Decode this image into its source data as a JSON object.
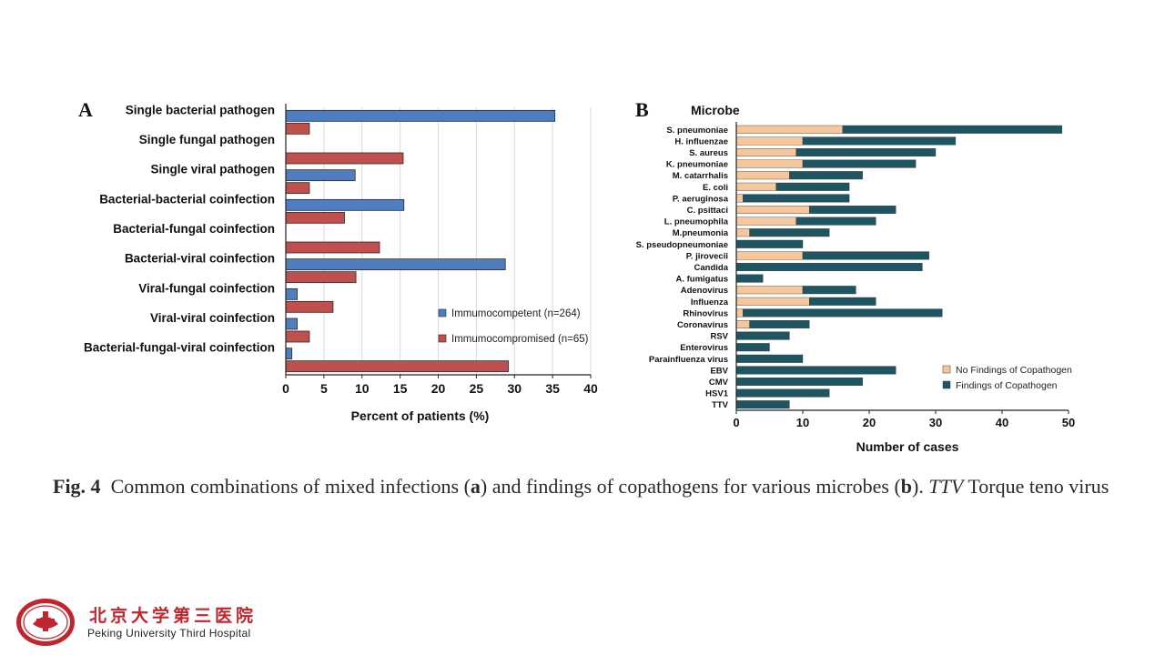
{
  "colors": {
    "immunocompetent": "#4f7dbf",
    "immunocompromised": "#c0504d",
    "no_findings": "#f6c79c",
    "findings": "#1f5560",
    "hospital_red": "#c0262d"
  },
  "panels": {
    "a_letter": "A",
    "b_letter": "B"
  },
  "chart_data": [
    {
      "type": "bar",
      "orientation": "horizontal",
      "categories": [
        "Single bacterial pathogen",
        "Single fungal pathogen",
        "Single viral pathogen",
        "Bacterial-bacterial coinfection",
        "Bacterial-fungal coinfection",
        "Bacterial-viral coinfection",
        "Viral-fungal coinfection",
        "Viral-viral coinfection",
        "Bacterial-fungal-viral coinfection"
      ],
      "series": [
        {
          "name": "Immumocompetent (n=264)",
          "values": [
            35.3,
            0,
            9.1,
            15.5,
            0,
            28.8,
            1.5,
            1.5,
            0.8
          ]
        },
        {
          "name": "Immumocompromised (n=65)",
          "values": [
            3.1,
            15.4,
            3.1,
            7.7,
            12.3,
            9.2,
            6.2,
            3.1,
            29.2
          ]
        }
      ],
      "xlabel": "Percent of patients (%)",
      "xlim": [
        0,
        40
      ],
      "xticks": [
        0,
        5,
        10,
        15,
        20,
        25,
        30,
        35,
        40
      ],
      "grid": true,
      "legend_position": "right"
    },
    {
      "type": "bar",
      "orientation": "horizontal",
      "stacked": true,
      "title": "Microbe",
      "categories": [
        "S. pneumoniae",
        "H. influenzae",
        "S. aureus",
        "K. pneumoniae",
        "M. catarrhalis",
        "E. coli",
        "P. aeruginosa",
        "C. psittaci",
        "L. pneumophila",
        "M.pneumonia",
        "S. pseudopneumoniae",
        "P. jirovecii",
        "Candida",
        "A. fumigatus",
        "Adenovirus",
        "Influenza",
        "Rhinovirus",
        "Coronavirus",
        "RSV",
        "Enterovirus",
        "Parainfluenza virus",
        "EBV",
        "CMV",
        "HSV1",
        "TTV"
      ],
      "series": [
        {
          "name": "No Findings of Copathogen",
          "values": [
            16,
            10,
            9,
            10,
            8,
            6,
            1,
            11,
            9,
            2,
            0,
            10,
            0,
            0,
            10,
            11,
            1,
            2,
            0,
            0,
            0,
            0,
            0,
            0,
            0
          ]
        },
        {
          "name": "Findings of Copathogen",
          "values": [
            33,
            23,
            21,
            17,
            11,
            11,
            16,
            13,
            12,
            12,
            10,
            19,
            28,
            4,
            8,
            10,
            30,
            9,
            8,
            5,
            10,
            24,
            19,
            14,
            8
          ]
        }
      ],
      "xlabel": "Number of cases",
      "xlim": [
        0,
        50
      ],
      "xticks": [
        0,
        10,
        20,
        30,
        40,
        50
      ],
      "grid": false,
      "legend_position": "bottom-right"
    }
  ],
  "caption": {
    "fig_label": "Fig. 4",
    "text_1": "Common combinations of mixed infections (",
    "a": "a",
    "text_2": ") and findings of copathogens for various microbes (",
    "b": "b",
    "text_3": "). ",
    "ttv": "TTV",
    "text_4": " Torque teno virus"
  },
  "logo": {
    "name_cn": "北京大学第三医院",
    "name_en": "Peking University Third Hospital",
    "seal_cn": "北京大学",
    "seal_en": "Peking University Third Hospital"
  }
}
